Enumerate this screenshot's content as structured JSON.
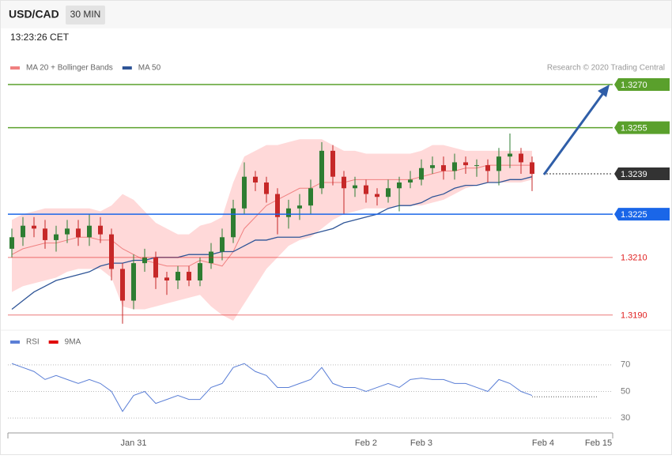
{
  "header": {
    "symbol": "USD/CAD",
    "interval": "30 MIN",
    "time": "13:23:26 CET",
    "credit": "Research © 2020 Trading Central"
  },
  "chart_data": [
    {
      "type": "candlestick",
      "ylim": [
        1.3185,
        1.328
      ],
      "up_color": "#2e7d32",
      "down_color": "#c62828",
      "open": [
        1.3213,
        1.3217,
        1.3221,
        1.322,
        1.3216,
        1.3218,
        1.322,
        1.3217,
        1.3221,
        1.3218,
        1.3206,
        1.3195,
        1.3208,
        1.321,
        1.3203,
        1.3202,
        1.3205,
        1.3202,
        1.3208,
        1.3212,
        1.3217,
        1.3227,
        1.3238,
        1.3236,
        1.3232,
        1.3224,
        1.3227,
        1.3228,
        1.3234,
        1.3247,
        1.3238,
        1.3234,
        1.3235,
        1.3232,
        1.3231,
        1.3234,
        1.3236,
        1.3237,
        1.3241,
        1.3242,
        1.324,
        1.3243,
        1.3242,
        1.3242,
        1.324,
        1.3245,
        1.3246,
        1.3243,
        null,
        null,
        null,
        null,
        null,
        null
      ],
      "high": [
        1.322,
        1.3224,
        1.3224,
        1.3223,
        1.3221,
        1.3223,
        1.3223,
        1.3225,
        1.3224,
        1.322,
        1.3208,
        1.3211,
        1.3213,
        1.3212,
        1.3205,
        1.3207,
        1.3207,
        1.321,
        1.3215,
        1.322,
        1.323,
        1.3243,
        1.324,
        1.3238,
        1.3234,
        1.323,
        1.3232,
        1.3237,
        1.325,
        1.3249,
        1.324,
        1.3238,
        1.3237,
        1.3234,
        1.3237,
        1.3238,
        1.324,
        1.3244,
        1.3245,
        1.3245,
        1.3246,
        1.3245,
        1.3244,
        1.3244,
        1.3248,
        1.3253,
        1.3248,
        1.3245,
        null,
        null,
        null,
        null,
        null,
        null
      ],
      "low": [
        1.321,
        1.3214,
        1.3217,
        1.3213,
        1.3212,
        1.3215,
        1.3214,
        1.3214,
        1.3215,
        1.3202,
        1.3187,
        1.3192,
        1.3205,
        1.3199,
        1.3197,
        1.3199,
        1.32,
        1.32,
        1.3206,
        1.3209,
        1.3215,
        1.3225,
        1.3233,
        1.3229,
        1.3218,
        1.322,
        1.3223,
        1.3225,
        1.3232,
        1.3235,
        1.3225,
        1.3231,
        1.3229,
        1.3228,
        1.3229,
        1.3226,
        1.3234,
        1.3235,
        1.3239,
        1.3237,
        1.3237,
        1.3239,
        1.3238,
        1.3236,
        1.3235,
        1.3241,
        1.3239,
        1.3233,
        null,
        null,
        null,
        null,
        null,
        null
      ],
      "close": [
        1.3217,
        1.3221,
        1.322,
        1.3216,
        1.3218,
        1.322,
        1.3217,
        1.3221,
        1.3218,
        1.3206,
        1.3195,
        1.3208,
        1.321,
        1.3203,
        1.3202,
        1.3205,
        1.3202,
        1.3208,
        1.3212,
        1.3217,
        1.3227,
        1.3238,
        1.3236,
        1.3232,
        1.3224,
        1.3227,
        1.3228,
        1.3234,
        1.3247,
        1.3238,
        1.3234,
        1.3235,
        1.3232,
        1.3231,
        1.3234,
        1.3236,
        1.3237,
        1.3241,
        1.3242,
        1.324,
        1.3243,
        1.3242,
        1.3242,
        1.324,
        1.3245,
        1.3246,
        1.3243,
        1.3239,
        null,
        null,
        null,
        null,
        null,
        null
      ],
      "series": [
        {
          "name": "MA 20 + Bollinger Bands",
          "color": "#f08080",
          "band_color": "#ffd9d9",
          "values": [
            1.3211,
            1.3213,
            1.3214,
            1.3215,
            1.3215,
            1.3216,
            1.3217,
            1.3217,
            1.3216,
            1.3216,
            1.3213,
            1.3211,
            1.3209,
            1.3208,
            1.3207,
            1.3207,
            1.3207,
            1.3209,
            1.3208,
            1.3207,
            1.3212,
            1.322,
            1.3224,
            1.3228,
            1.323,
            1.3232,
            1.3234,
            1.3234,
            1.3236,
            1.3236,
            1.3236,
            1.3237,
            1.3237,
            1.3237,
            1.3237,
            1.3237,
            1.3237,
            1.3238,
            1.3239,
            1.324,
            1.324,
            1.3241,
            1.3241,
            1.3242,
            1.3242,
            1.3242,
            1.3242,
            1.3242,
            null,
            null,
            null,
            null,
            null,
            null
          ],
          "upper": [
            1.3223,
            1.3225,
            1.3226,
            1.3227,
            1.3227,
            1.3227,
            1.3227,
            1.3227,
            1.3226,
            1.3228,
            1.3232,
            1.323,
            1.3226,
            1.3222,
            1.322,
            1.3218,
            1.3218,
            1.3221,
            1.3222,
            1.3224,
            1.3236,
            1.3245,
            1.3247,
            1.3249,
            1.3249,
            1.325,
            1.3251,
            1.3251,
            1.3251,
            1.3249,
            1.3247,
            1.3247,
            1.3246,
            1.3246,
            1.3246,
            1.3246,
            1.3246,
            1.3247,
            1.3249,
            1.3249,
            1.3248,
            1.3247,
            1.3247,
            1.3247,
            1.3247,
            1.3247,
            1.3247,
            1.3247,
            null,
            null,
            null,
            null,
            null,
            null
          ],
          "lower": [
            1.3198,
            1.32,
            1.3201,
            1.3202,
            1.3203,
            1.3205,
            1.3206,
            1.3206,
            1.3206,
            1.3203,
            1.3193,
            1.3192,
            1.3192,
            1.3193,
            1.3194,
            1.3195,
            1.3196,
            1.3197,
            1.3193,
            1.319,
            1.3188,
            1.3194,
            1.32,
            1.3206,
            1.321,
            1.3214,
            1.3216,
            1.3217,
            1.322,
            1.3223,
            1.3225,
            1.3226,
            1.3227,
            1.3227,
            1.3227,
            1.3228,
            1.3228,
            1.3228,
            1.3229,
            1.323,
            1.3232,
            1.3234,
            1.3235,
            1.3236,
            1.3236,
            1.3236,
            1.3236,
            1.3237,
            null,
            null,
            null,
            null,
            null,
            null
          ]
        },
        {
          "name": "MA 50",
          "color": "#2f5597",
          "values": [
            1.3192,
            1.3195,
            1.3198,
            1.32,
            1.3202,
            1.3203,
            1.3204,
            1.3205,
            1.3207,
            1.3208,
            1.3208,
            1.3209,
            1.3209,
            1.321,
            1.321,
            1.321,
            1.3211,
            1.3211,
            1.3211,
            1.3212,
            1.3212,
            1.3214,
            1.3216,
            1.3216,
            1.3217,
            1.3217,
            1.3217,
            1.3218,
            1.3219,
            1.322,
            1.3222,
            1.3223,
            1.3224,
            1.3225,
            1.3227,
            1.3228,
            1.3228,
            1.3229,
            1.3231,
            1.3232,
            1.3234,
            1.3235,
            1.3235,
            1.3236,
            1.3236,
            1.3237,
            1.3237,
            1.3238,
            null,
            null,
            null,
            null,
            null,
            null
          ]
        }
      ],
      "levels": [
        {
          "value": 1.327,
          "label": "1.3270",
          "color": "#5aa02c",
          "style": "box",
          "line": "solid"
        },
        {
          "value": 1.3255,
          "label": "1.3255",
          "color": "#5aa02c",
          "style": "box",
          "line": "solid"
        },
        {
          "value": 1.3239,
          "label": "1.3239",
          "color": "#333333",
          "style": "box",
          "line": "dotted"
        },
        {
          "value": 1.3225,
          "label": "1.3225",
          "color": "#1a66e8",
          "style": "box",
          "line": "solid"
        },
        {
          "value": 1.321,
          "label": "1.3210",
          "color": "#e02020",
          "style": "text",
          "line": "solid"
        },
        {
          "value": 1.319,
          "label": "1.3190",
          "color": "#e02020",
          "style": "text",
          "line": "solid"
        }
      ]
    },
    {
      "type": "line",
      "ylim": [
        20,
        80
      ],
      "yticks": [
        30,
        50,
        70
      ],
      "categories": [
        null,
        null,
        null,
        null,
        null,
        null,
        null,
        null,
        null,
        null,
        null,
        "Jan 31",
        null,
        null,
        null,
        null,
        null,
        null,
        null,
        null,
        null,
        null,
        null,
        null,
        null,
        null,
        null,
        null,
        null,
        null,
        null,
        null,
        "Feb 2",
        null,
        null,
        null,
        null,
        "Feb 3",
        null,
        null,
        null,
        null,
        null,
        null,
        null,
        null,
        null,
        null,
        "Feb 4",
        null,
        null,
        null,
        null,
        "Feb 15"
      ],
      "series": [
        {
          "name": "RSI",
          "color": "#5b7fd6",
          "values": [
            71,
            68,
            65,
            59,
            62,
            59,
            56,
            59,
            56,
            50,
            35,
            47,
            50,
            41,
            44,
            47,
            44,
            44,
            53,
            56,
            68,
            71,
            65,
            62,
            53,
            53,
            56,
            59,
            68,
            56,
            53,
            53,
            50,
            53,
            56,
            53,
            59,
            60,
            59,
            59,
            56,
            56,
            53,
            50,
            59,
            56,
            50,
            47,
            null,
            null,
            null,
            null,
            null,
            null
          ]
        },
        {
          "name": "9MA",
          "color": "#e00000",
          "values": [
            null,
            null,
            null,
            null,
            null,
            null,
            null,
            null,
            null,
            null,
            null,
            null,
            null,
            null,
            null,
            null,
            null,
            null,
            null,
            null,
            null,
            null,
            null,
            null,
            null,
            null,
            null,
            null,
            null,
            null,
            null,
            null,
            null,
            null,
            null,
            null,
            null,
            null,
            null,
            null,
            null,
            null,
            null,
            null,
            null,
            null,
            null,
            46,
            46,
            46,
            46,
            46,
            46,
            46
          ]
        }
      ]
    }
  ]
}
